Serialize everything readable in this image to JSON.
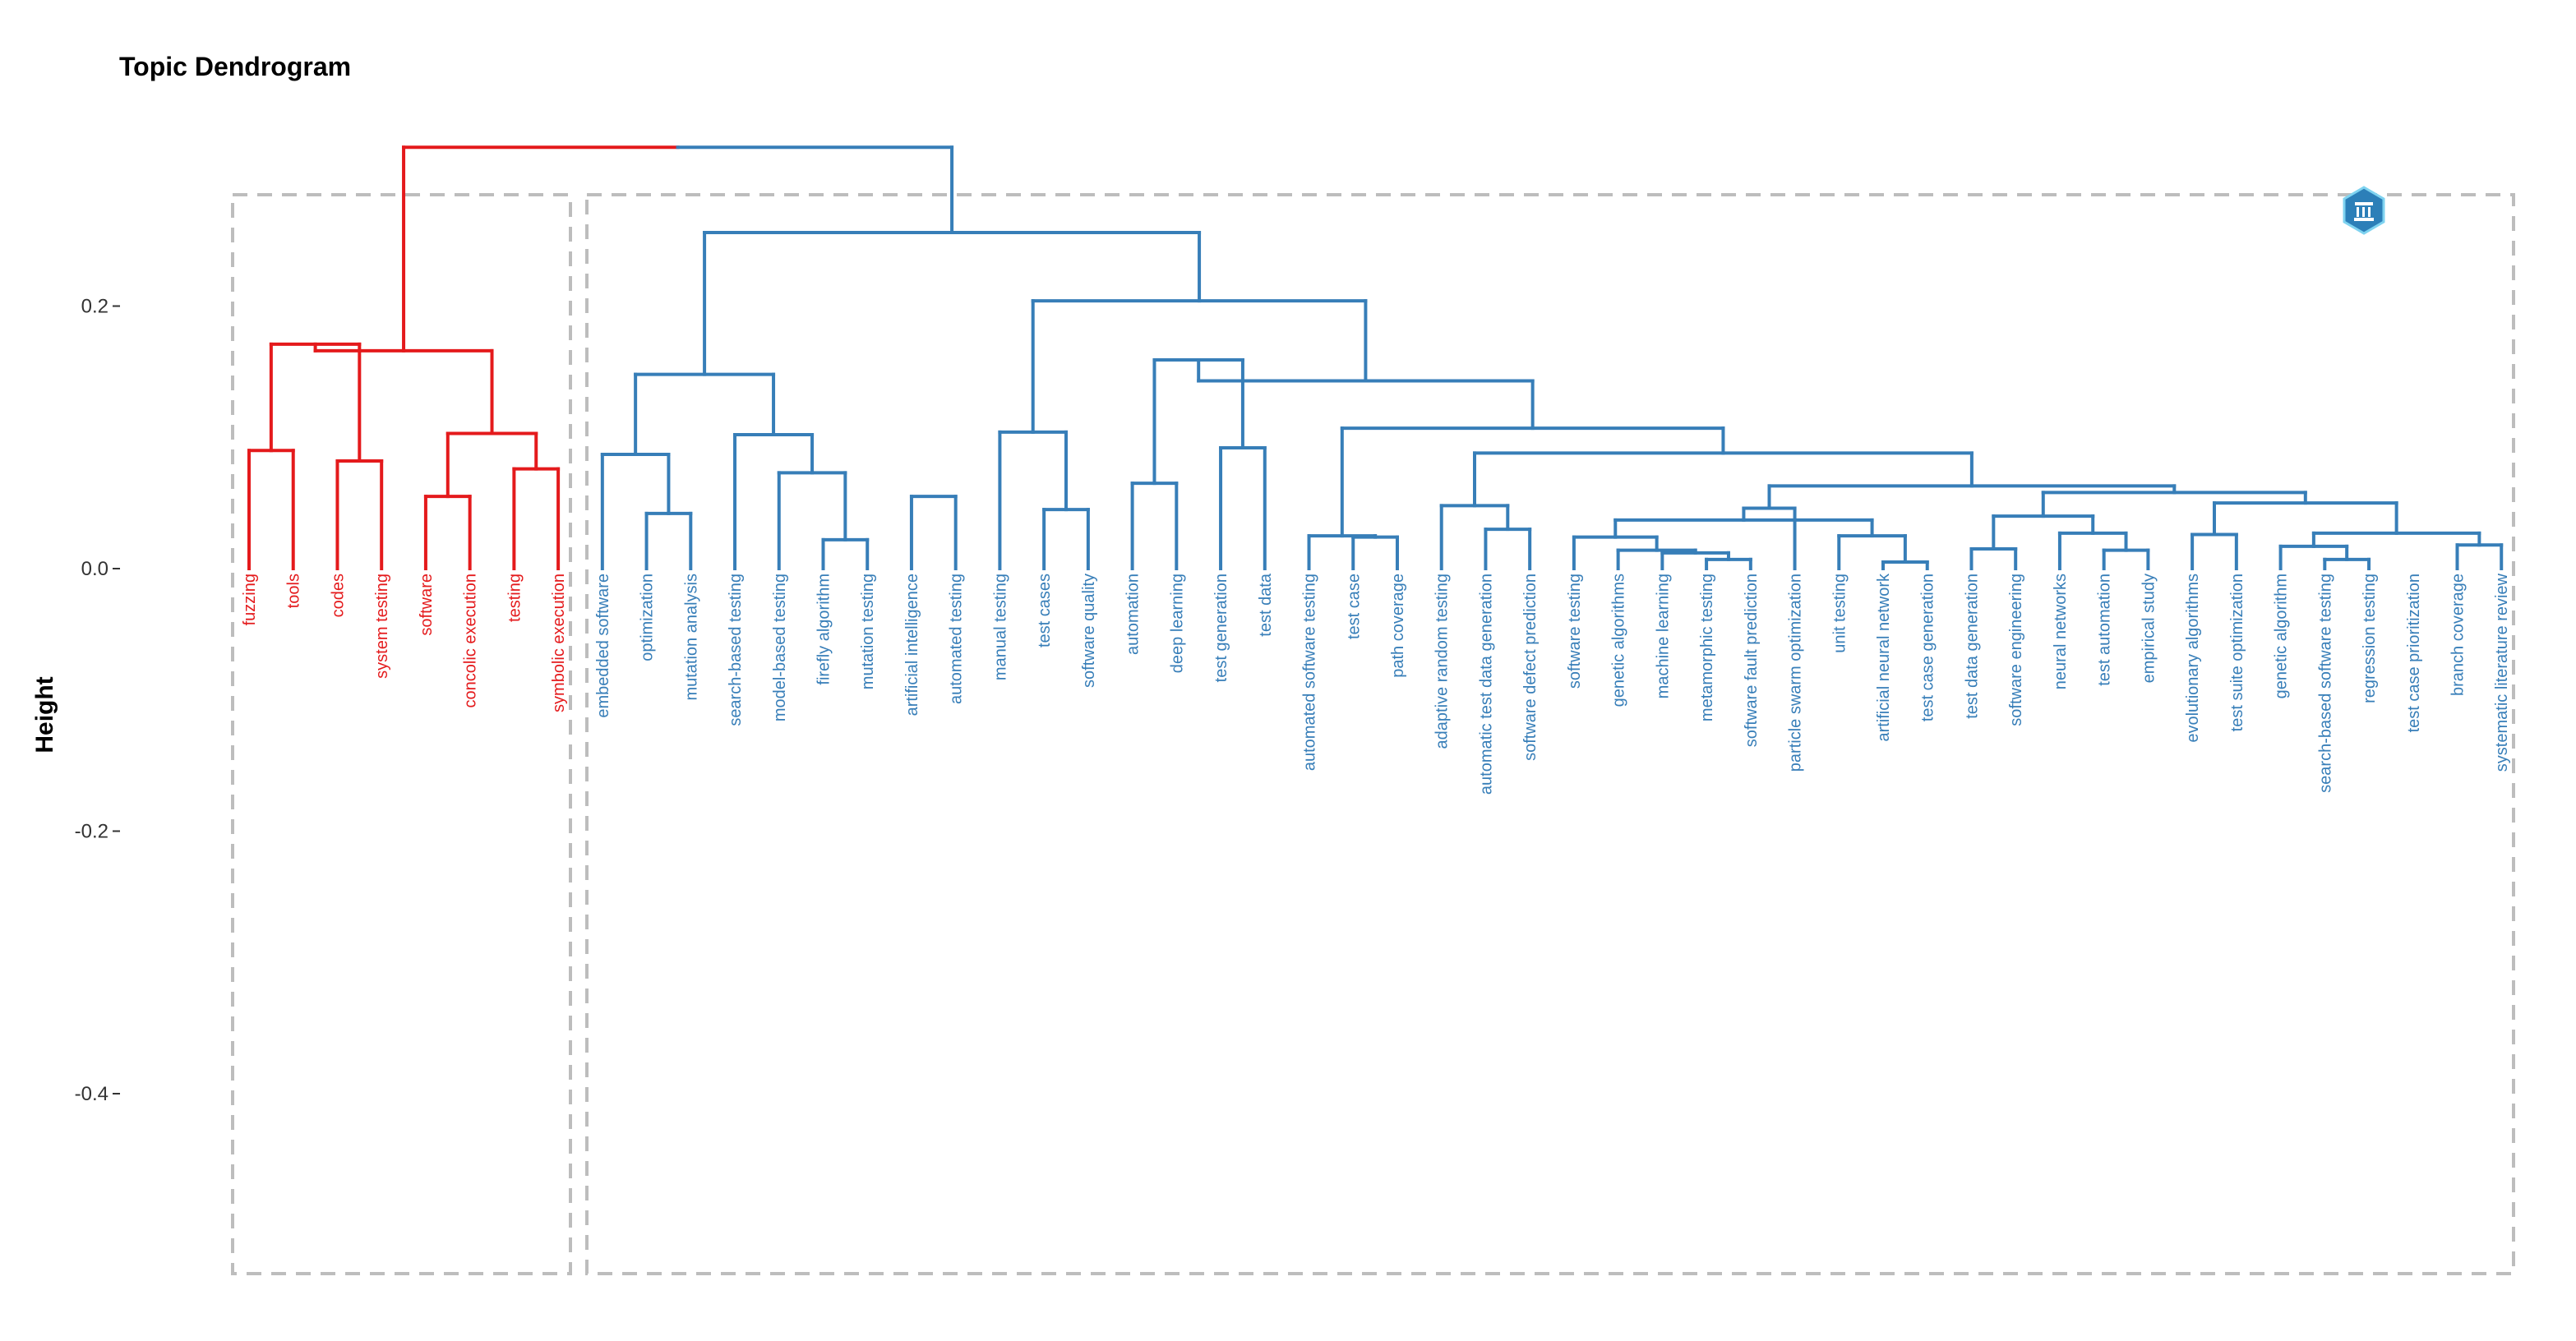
{
  "chart_data": {
    "type": "dendrogram",
    "title": "Topic Dendrogram",
    "ylabel": "Height",
    "ylim": [
      -0.5,
      0.32
    ],
    "yticks": [
      0.2,
      0.0,
      -0.2,
      -0.4
    ],
    "ytick_labels": [
      "0.2",
      "0.0",
      "-0.2",
      "-0.4"
    ],
    "colors": {
      "cluster1": "#E41A1C",
      "cluster2": "#377EB8",
      "box": "#BDBDBD"
    },
    "clusters": [
      {
        "color": "#E41A1C",
        "leaves": [
          "fuzzing",
          "tools",
          "codes",
          "system testing",
          "software",
          "concolic execution",
          "testing",
          "symbolic execution"
        ]
      },
      {
        "color": "#377EB8",
        "leaves": [
          "embedded software",
          "optimization",
          "mutation analysis",
          "search-based testing",
          "model-based testing",
          "firefly algorithm",
          "mutation testing",
          "artificial intelligence",
          "automated testing",
          "manual testing",
          "test cases",
          "software quality",
          "automation",
          "deep learning",
          "test generation",
          "test data",
          "automated software testing",
          "test case",
          "path coverage",
          "adaptive random testing",
          "automatic test data generation",
          "software defect prediction",
          "software testing",
          "genetic algorithms",
          "machine learning",
          "metamorphic testing",
          "software fault prediction",
          "particle swarm optimization",
          "unit testing",
          "artificial neural network",
          "test case generation",
          "test data generation",
          "software engineering",
          "neural networks",
          "test automation",
          "empirical study",
          "evolutionary algorithms",
          "test suite optimization",
          "genetic algorithm",
          "search-based software testing",
          "regression testing",
          "test case prioritization",
          "branch coverage",
          "systematic literature review"
        ]
      }
    ],
    "merges": [
      [
        0,
        1,
        0.09
      ],
      [
        2,
        3,
        0.082
      ],
      [
        4,
        5,
        0.055
      ],
      [
        6,
        7,
        0.076
      ],
      [
        "m0",
        "m1",
        0.171
      ],
      [
        "m2",
        "m3",
        0.103
      ],
      [
        "m4",
        "m5",
        0.166
      ],
      [
        9,
        10,
        0.042
      ],
      [
        8,
        "m7",
        0.087
      ],
      [
        13,
        14,
        0.022
      ],
      [
        15,
        16,
        0.055
      ],
      [
        12,
        "m9",
        0.073
      ],
      [
        11,
        "m11",
        0.102
      ],
      [
        "m8",
        "m12",
        0.148
      ],
      [
        18,
        19,
        0.045
      ],
      [
        17,
        "m14",
        0.104
      ],
      [
        20,
        21,
        0.065
      ],
      [
        22,
        23,
        0.092
      ],
      [
        "m16",
        "m17",
        0.159
      ],
      [
        25,
        26,
        0.024
      ],
      [
        24,
        "m19",
        0.025
      ],
      [
        28,
        29,
        0.03
      ],
      [
        27,
        "m21",
        0.048
      ],
      [
        33,
        34,
        0.007
      ],
      [
        32,
        "m23",
        0.012
      ],
      [
        31,
        "m24",
        0.014
      ],
      [
        30,
        "m25",
        0.024
      ],
      [
        37,
        38,
        0.005
      ],
      [
        36,
        "m27",
        0.025
      ],
      [
        "m26",
        "m28",
        0.037
      ],
      [
        35,
        "m29",
        0.046
      ],
      [
        39,
        40,
        0.015
      ],
      [
        42,
        43,
        0.014
      ],
      [
        41,
        "m32",
        0.027
      ],
      [
        "m31",
        "m33",
        0.04
      ],
      [
        44,
        45,
        0.026
      ],
      [
        47,
        48,
        0.007
      ],
      [
        46,
        "m36",
        0.017
      ],
      [
        50,
        51,
        0.018
      ],
      [
        "m37",
        "m38",
        0.027
      ],
      [
        "m35",
        "m39",
        0.05
      ],
      [
        "m34",
        "m40",
        0.058
      ],
      [
        "m30",
        "m41",
        0.063
      ],
      [
        "m22",
        "m42",
        0.088
      ],
      [
        "m20",
        "m43",
        0.107
      ],
      [
        "m18",
        "m44",
        0.143
      ],
      [
        "m15",
        "m45",
        0.204
      ],
      [
        "m13",
        "m46",
        0.256
      ],
      [
        "m6",
        "m47",
        0.321
      ]
    ]
  }
}
